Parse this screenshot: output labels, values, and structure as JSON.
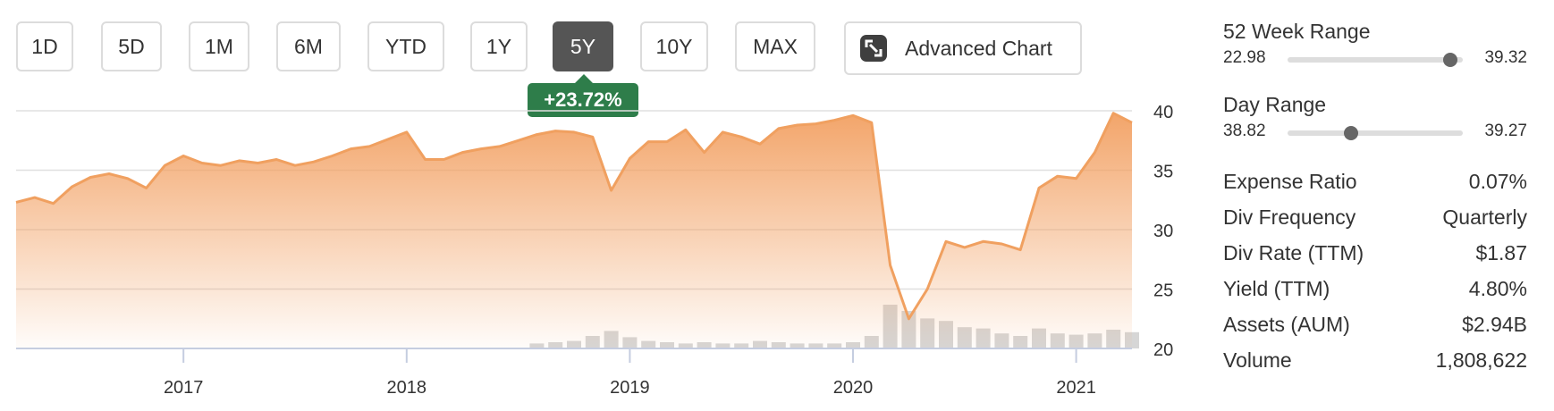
{
  "range_buttons": [
    {
      "label": "1D"
    },
    {
      "label": "5D"
    },
    {
      "label": "1M"
    },
    {
      "label": "6M"
    },
    {
      "label": "YTD"
    },
    {
      "label": "1Y"
    },
    {
      "label": "5Y",
      "active": true
    },
    {
      "label": "10Y"
    },
    {
      "label": "MAX"
    }
  ],
  "advanced_chart_label": "Advanced Chart",
  "change_badge": "+23.72%",
  "colors": {
    "line": "#f0a060",
    "area_top": "#f2a062",
    "volume": "#d6d6d6",
    "badge": "#2e7d4a",
    "active_button": "#555555"
  },
  "ranges": {
    "week52": {
      "title": "52 Week Range",
      "low": "22.98",
      "high": "39.32",
      "position": 0.93
    },
    "day": {
      "title": "Day Range",
      "low": "38.82",
      "high": "39.27",
      "position": 0.36
    }
  },
  "stats": [
    {
      "label": "Expense Ratio",
      "value": "0.07%"
    },
    {
      "label": "Div Frequency",
      "value": "Quarterly"
    },
    {
      "label": "Div Rate (TTM)",
      "value": "$1.87"
    },
    {
      "label": "Yield (TTM)",
      "value": "4.80%"
    },
    {
      "label": "Assets (AUM)",
      "value": "$2.94B"
    },
    {
      "label": "Volume",
      "value": "1,808,622"
    }
  ],
  "chart_data": {
    "type": "area",
    "title": "",
    "xlabel": "",
    "ylabel": "",
    "ylim": [
      20,
      40
    ],
    "y_ticks": [
      "40",
      "35",
      "30",
      "25",
      "20"
    ],
    "x_ticks": [
      "2017",
      "2018",
      "2019",
      "2020",
      "2021"
    ],
    "xlim": [
      "2016-04",
      "2021-04"
    ],
    "grid": true,
    "series": [
      {
        "x": [
          "2016-04",
          "2016-05",
          "2016-06",
          "2016-07",
          "2016-08",
          "2016-09",
          "2016-10",
          "2016-11",
          "2016-12",
          "2017-01",
          "2017-02",
          "2017-03",
          "2017-04",
          "2017-05",
          "2017-06",
          "2017-07",
          "2017-08",
          "2017-09",
          "2017-10",
          "2017-11",
          "2017-12",
          "2018-01",
          "2018-02",
          "2018-03",
          "2018-04",
          "2018-05",
          "2018-06",
          "2018-07",
          "2018-08",
          "2018-09",
          "2018-10",
          "2018-11",
          "2018-12",
          "2019-01",
          "2019-02",
          "2019-03",
          "2019-04",
          "2019-05",
          "2019-06",
          "2019-07",
          "2019-08",
          "2019-09",
          "2019-10",
          "2019-11",
          "2019-12",
          "2020-01",
          "2020-02",
          "2020-03",
          "2020-04",
          "2020-05",
          "2020-06",
          "2020-07",
          "2020-08",
          "2020-09",
          "2020-10",
          "2020-11",
          "2020-12",
          "2021-01",
          "2021-02",
          "2021-03",
          "2021-04"
        ],
        "values": [
          32.3,
          32.7,
          32.2,
          33.6,
          34.4,
          34.7,
          34.3,
          33.5,
          35.4,
          36.2,
          35.6,
          35.4,
          35.8,
          35.6,
          35.9,
          35.4,
          35.7,
          36.2,
          36.8,
          37.0,
          37.6,
          38.2,
          35.9,
          35.9,
          36.5,
          36.8,
          37.0,
          37.5,
          38.0,
          38.3,
          38.2,
          37.8,
          33.3,
          36.0,
          37.4,
          37.4,
          38.4,
          36.5,
          38.2,
          37.8,
          37.2,
          38.5,
          38.8,
          38.9,
          39.2,
          39.6,
          39.0,
          27.0,
          22.5,
          25.0,
          29.0,
          28.5,
          29.0,
          28.8,
          28.3,
          33.5,
          34.5,
          34.3,
          36.5,
          39.8,
          39.0
        ]
      }
    ],
    "volume": [
      0,
      0,
      0,
      0,
      0,
      0,
      0,
      0,
      0,
      0,
      0,
      0,
      0,
      0,
      0,
      0,
      0,
      0,
      0,
      0,
      0,
      0,
      0,
      0,
      0,
      0,
      0,
      0,
      0.4,
      0.5,
      0.6,
      1.0,
      1.4,
      0.9,
      0.6,
      0.5,
      0.4,
      0.5,
      0.4,
      0.4,
      0.6,
      0.5,
      0.4,
      0.4,
      0.4,
      0.5,
      1.0,
      3.5,
      3.0,
      2.4,
      2.2,
      1.7,
      1.6,
      1.2,
      1.0,
      1.6,
      1.2,
      1.1,
      1.2,
      1.5,
      1.3
    ]
  }
}
